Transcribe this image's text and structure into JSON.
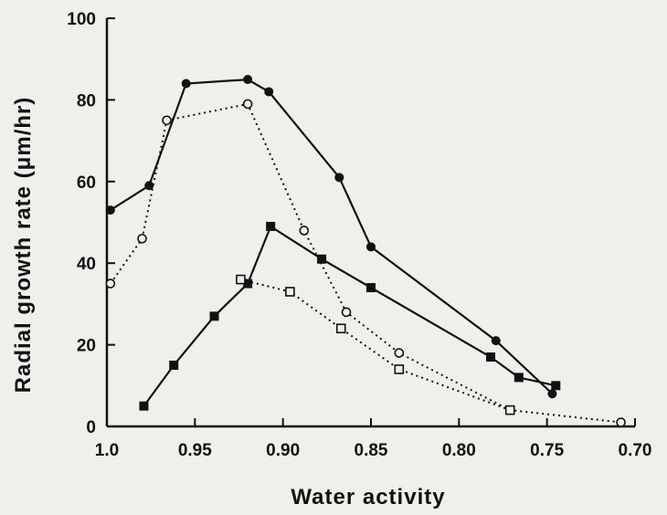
{
  "chart_data": {
    "type": "line",
    "xlabel": "Water activity",
    "ylabel": "Radial growth rate (μm/hr)",
    "xlim": [
      1.0,
      0.7
    ],
    "ylim": [
      0,
      100
    ],
    "x_reversed": true,
    "x_ticks": [
      "1.0",
      "0.95",
      "0.90",
      "0.85",
      "0.80",
      "0.75",
      "0.70"
    ],
    "x_tick_values": [
      1.0,
      0.95,
      0.9,
      0.85,
      0.8,
      0.75,
      0.7
    ],
    "y_ticks": [
      "0",
      "20",
      "40",
      "60",
      "80",
      "100"
    ],
    "y_tick_values": [
      0,
      20,
      40,
      60,
      80,
      100
    ],
    "grid": false,
    "legend": "none",
    "series": [
      {
        "marker": "filled-circle",
        "line": "solid",
        "color": "#111111",
        "points": [
          [
            0.998,
            53
          ],
          [
            0.976,
            59
          ],
          [
            0.955,
            84
          ],
          [
            0.92,
            85
          ],
          [
            0.908,
            82
          ],
          [
            0.868,
            61
          ],
          [
            0.85,
            44
          ],
          [
            0.779,
            21
          ],
          [
            0.747,
            8
          ]
        ]
      },
      {
        "marker": "open-circle",
        "line": "dotted",
        "color": "#111111",
        "points": [
          [
            0.998,
            35
          ],
          [
            0.98,
            46
          ],
          [
            0.966,
            75
          ],
          [
            0.92,
            79
          ],
          [
            0.888,
            48
          ],
          [
            0.864,
            28
          ],
          [
            0.834,
            18
          ],
          [
            0.771,
            4
          ],
          [
            0.708,
            1
          ]
        ]
      },
      {
        "marker": "filled-square",
        "line": "solid",
        "color": "#111111",
        "points": [
          [
            0.979,
            5
          ],
          [
            0.962,
            15
          ],
          [
            0.939,
            27
          ],
          [
            0.92,
            35
          ],
          [
            0.907,
            49
          ],
          [
            0.878,
            41
          ],
          [
            0.85,
            34
          ],
          [
            0.782,
            17
          ],
          [
            0.766,
            12
          ],
          [
            0.745,
            10
          ]
        ]
      },
      {
        "marker": "open-square",
        "line": "dotted",
        "color": "#111111",
        "points": [
          [
            0.924,
            36
          ],
          [
            0.896,
            33
          ],
          [
            0.867,
            24
          ],
          [
            0.834,
            14
          ],
          [
            0.771,
            4
          ]
        ]
      }
    ]
  }
}
